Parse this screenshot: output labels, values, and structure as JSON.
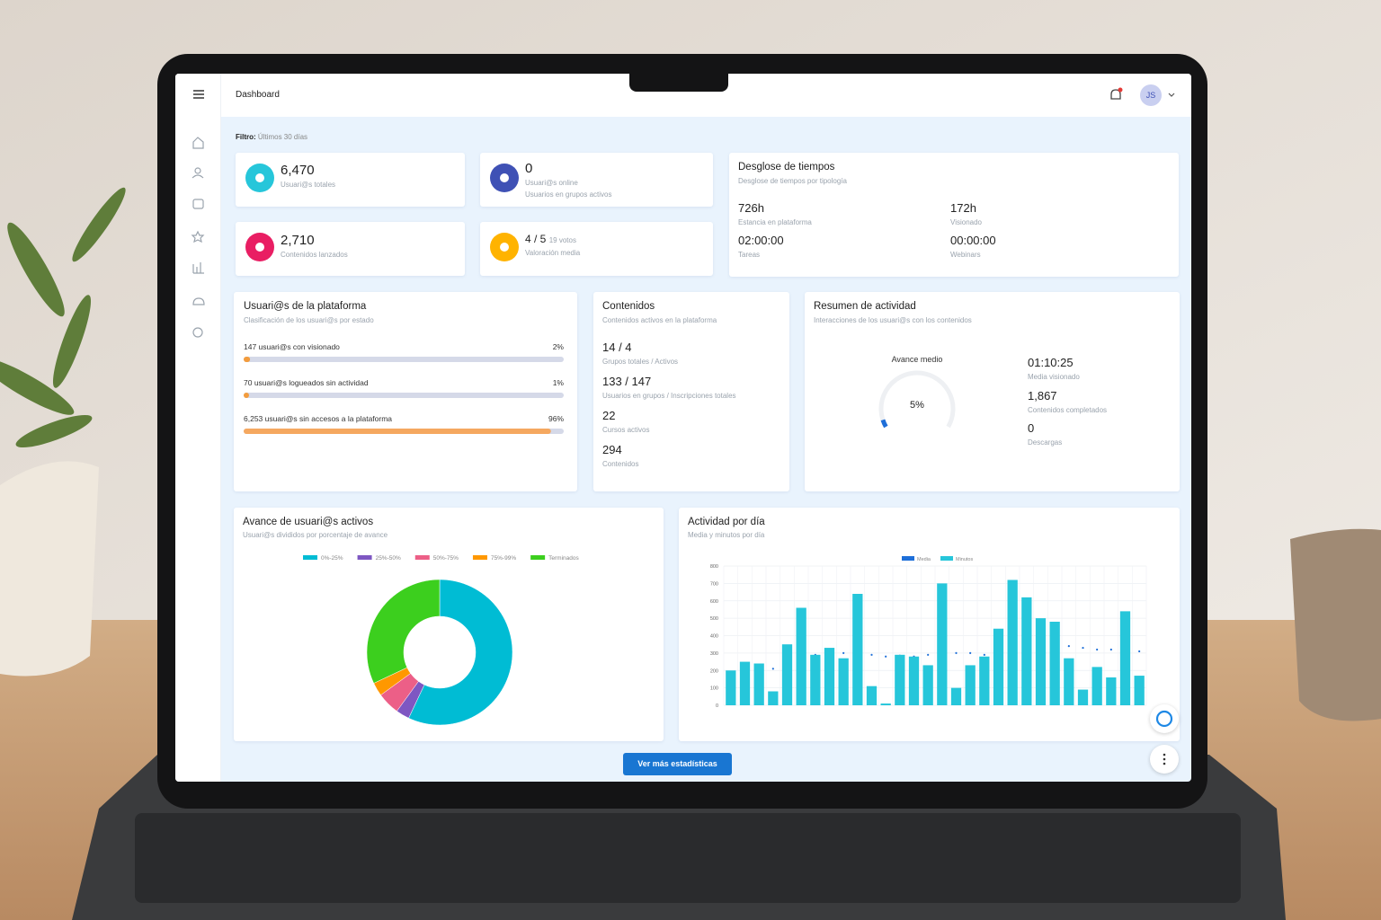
{
  "header": {
    "title": "Dashboard",
    "avatar": "JS"
  },
  "filter": {
    "label": "Filtro:",
    "value": "Últimos 30 días"
  },
  "stats": [
    {
      "value": "6,470",
      "label": "Usuari@s totales"
    },
    {
      "value": "0",
      "label": "Usuari@s online",
      "sub": "Usuarios en grupos activos"
    },
    {
      "value": "2,710",
      "label": "Contenidos lanzados"
    },
    {
      "value": "4 / 5",
      "extra": "19 votos",
      "label": "Valoración media"
    }
  ],
  "tiempos": {
    "title": "Desglose de tiempos",
    "subtitle": "Desglose de tiempos por tipología",
    "items": [
      {
        "value": "726h",
        "label": "Estancia en plataforma"
      },
      {
        "value": "172h",
        "label": "Visionado"
      },
      {
        "value": "02:00:00",
        "label": "Tareas"
      },
      {
        "value": "00:00:00",
        "label": "Webinars"
      }
    ]
  },
  "usuarios": {
    "title": "Usuari@s de la plataforma",
    "subtitle": "Clasificación de los usuari@s por estado",
    "range": [
      0,
      100
    ],
    "rows": [
      {
        "label": "147 usuari@s con visionado",
        "percent": 2,
        "percent_label": "2%",
        "color": "#f39c3d"
      },
      {
        "label": "70 usuari@s logueados sin actividad",
        "percent": 1,
        "percent_label": "1%",
        "color": "#f39c3d"
      },
      {
        "label": "6,253 usuari@s sin accesos a la plataforma",
        "percent": 96,
        "percent_label": "96%",
        "color": "#f5a860"
      }
    ]
  },
  "contenidos": {
    "title": "Contenidos",
    "subtitle": "Contenidos activos en la plataforma",
    "items": [
      {
        "value": "14 / 4",
        "label": "Grupos totales / Activos"
      },
      {
        "value": "133 / 147",
        "label": "Usuarios en grupos / Inscripciones totales"
      },
      {
        "value": "22",
        "label": "Cursos activos"
      },
      {
        "value": "294",
        "label": "Contenidos"
      }
    ]
  },
  "resumen": {
    "title": "Resumen de actividad",
    "subtitle": "Interacciones de los usuari@s con los contenidos",
    "gauge": {
      "label": "Avance medio",
      "value": 5,
      "value_label": "5%",
      "range": [
        0,
        100
      ],
      "color": "#1e6fd9"
    },
    "items": [
      {
        "value": "01:10:25",
        "label": "Media visionado"
      },
      {
        "value": "1,867",
        "label": "Contenidos completados"
      },
      {
        "value": "0",
        "label": "Descargas"
      }
    ]
  },
  "chart_data": [
    {
      "type": "pie",
      "donut": true,
      "title": "Avance de usuari@s activos",
      "subtitle": "Usuari@s divididos por porcentaje de avance",
      "categories": [
        "0%-25%",
        "25%-50%",
        "50%-75%",
        "75%-99%",
        "Terminados"
      ],
      "values": [
        57,
        3,
        5,
        3,
        32
      ],
      "colors": [
        "#00bcd4",
        "#7e57c2",
        "#ec5f87",
        "#ff9800",
        "#3ccf1e"
      ]
    },
    {
      "type": "bar",
      "title": "Actividad por día",
      "subtitle": "Media y minutos por día",
      "categories": [
        null,
        null,
        null,
        null,
        null,
        null,
        null,
        null,
        null,
        null,
        null,
        null,
        null,
        null,
        null,
        null,
        null,
        null,
        null,
        null,
        null,
        null,
        null,
        null,
        null,
        null,
        null,
        null,
        null,
        null
      ],
      "series": [
        {
          "name": "Media",
          "color": "#1e6fd9",
          "type": "line",
          "values": [
            null,
            null,
            null,
            210,
            240,
            260,
            290,
            300,
            300,
            310,
            290,
            280,
            285,
            280,
            290,
            290,
            300,
            300,
            290,
            300,
            310,
            320,
            330,
            330,
            340,
            330,
            320,
            320,
            320,
            310
          ]
        },
        {
          "name": "Minutos",
          "color": "#26c6da",
          "type": "bar",
          "values": [
            200,
            250,
            240,
            80,
            350,
            560,
            290,
            330,
            270,
            640,
            110,
            10,
            290,
            280,
            230,
            700,
            100,
            230,
            280,
            440,
            720,
            620,
            500,
            480,
            270,
            90,
            220,
            160,
            540,
            170
          ]
        }
      ],
      "ylim": [
        0,
        800
      ],
      "yticks": [
        0,
        100,
        200,
        300,
        400,
        500,
        600,
        700,
        800
      ],
      "grid": true
    }
  ],
  "button": "Ver más estadísticas"
}
